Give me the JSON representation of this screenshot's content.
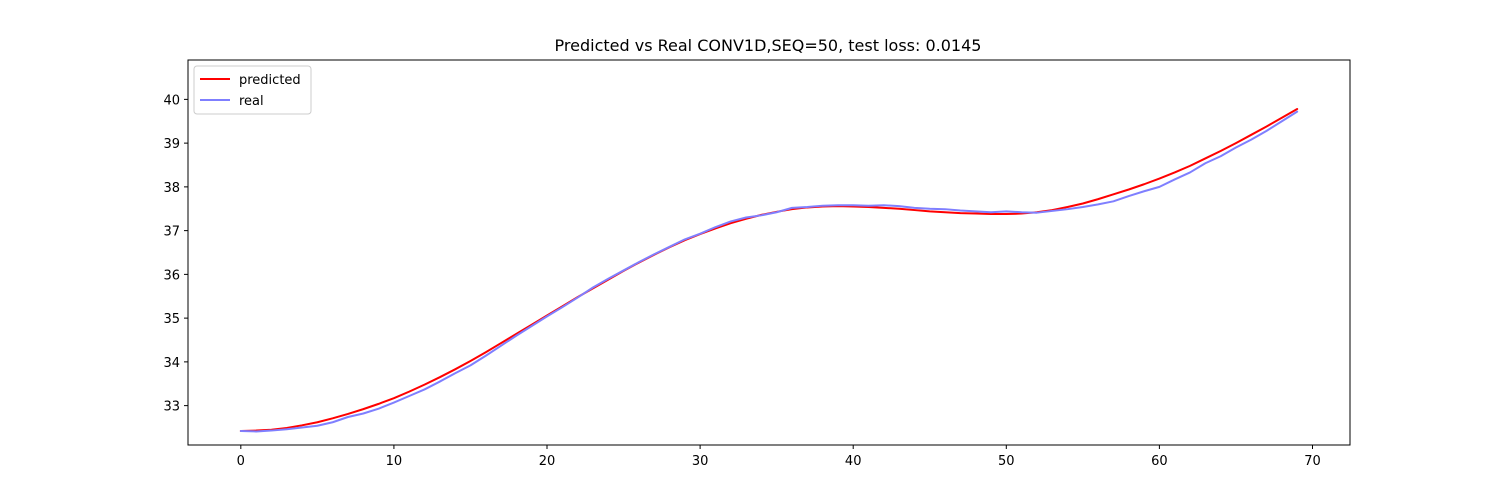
{
  "chart_data": {
    "type": "line",
    "title": "Predicted vs Real CONV1D,SEQ=50, test loss: 0.0145",
    "xlabel": "",
    "ylabel": "",
    "xlim": [
      -3.45,
      72.45
    ],
    "ylim": [
      32.1,
      40.9
    ],
    "xticks": [
      0,
      10,
      20,
      30,
      40,
      50,
      60,
      70
    ],
    "yticks": [
      33,
      34,
      35,
      36,
      37,
      38,
      39,
      40
    ],
    "grid": false,
    "legend_position": "top-left",
    "series": [
      {
        "name": "predicted",
        "color": "#ff0000",
        "x": [
          0,
          1,
          2,
          3,
          4,
          5,
          6,
          7,
          8,
          9,
          10,
          11,
          12,
          13,
          14,
          15,
          16,
          17,
          18,
          19,
          20,
          21,
          22,
          23,
          24,
          25,
          26,
          27,
          28,
          29,
          30,
          31,
          32,
          33,
          34,
          35,
          36,
          37,
          38,
          39,
          40,
          41,
          42,
          43,
          44,
          45,
          46,
          47,
          48,
          49,
          50,
          51,
          52,
          53,
          54,
          55,
          56,
          57,
          58,
          59,
          60,
          61,
          62,
          63,
          64,
          65,
          66,
          67,
          68,
          69
        ],
        "values": [
          32.42,
          32.43,
          32.45,
          32.49,
          32.55,
          32.62,
          32.71,
          32.81,
          32.92,
          33.04,
          33.17,
          33.32,
          33.48,
          33.65,
          33.83,
          34.02,
          34.22,
          34.43,
          34.64,
          34.85,
          35.06,
          35.27,
          35.48,
          35.68,
          35.88,
          36.08,
          36.27,
          36.45,
          36.62,
          36.78,
          36.92,
          37.05,
          37.17,
          37.27,
          37.36,
          37.43,
          37.49,
          37.53,
          37.55,
          37.56,
          37.55,
          37.54,
          37.52,
          37.5,
          37.47,
          37.44,
          37.42,
          37.4,
          37.39,
          37.38,
          37.38,
          37.39,
          37.42,
          37.47,
          37.54,
          37.62,
          37.72,
          37.83,
          37.94,
          38.06,
          38.19,
          38.33,
          38.48,
          38.65,
          38.82,
          39.0,
          39.19,
          39.38,
          39.58,
          39.78
        ]
      },
      {
        "name": "real",
        "color": "#7f7fff",
        "x": [
          0,
          1,
          2,
          3,
          4,
          5,
          6,
          7,
          8,
          9,
          10,
          11,
          12,
          13,
          14,
          15,
          16,
          17,
          18,
          19,
          20,
          21,
          22,
          23,
          24,
          25,
          26,
          27,
          28,
          29,
          30,
          31,
          32,
          33,
          34,
          35,
          36,
          37,
          38,
          39,
          40,
          41,
          42,
          43,
          44,
          45,
          46,
          47,
          48,
          49,
          50,
          51,
          52,
          53,
          54,
          55,
          56,
          57,
          58,
          59,
          60,
          61,
          62,
          63,
          64,
          65,
          66,
          67,
          68,
          69
        ],
        "values": [
          32.42,
          32.41,
          32.43,
          32.46,
          32.5,
          32.54,
          32.62,
          32.74,
          32.82,
          32.93,
          33.07,
          33.22,
          33.37,
          33.55,
          33.74,
          33.92,
          34.14,
          34.37,
          34.6,
          34.82,
          35.04,
          35.25,
          35.47,
          35.7,
          35.9,
          36.09,
          36.28,
          36.46,
          36.63,
          36.8,
          36.93,
          37.08,
          37.21,
          37.3,
          37.35,
          37.42,
          37.52,
          37.54,
          37.57,
          37.58,
          37.58,
          37.57,
          37.58,
          37.56,
          37.52,
          37.5,
          37.49,
          37.46,
          37.44,
          37.42,
          37.44,
          37.42,
          37.41,
          37.45,
          37.49,
          37.54,
          37.6,
          37.67,
          37.79,
          37.9,
          38.0,
          38.17,
          38.33,
          38.54,
          38.7,
          38.9,
          39.08,
          39.28,
          39.5,
          39.72
        ]
      }
    ]
  }
}
